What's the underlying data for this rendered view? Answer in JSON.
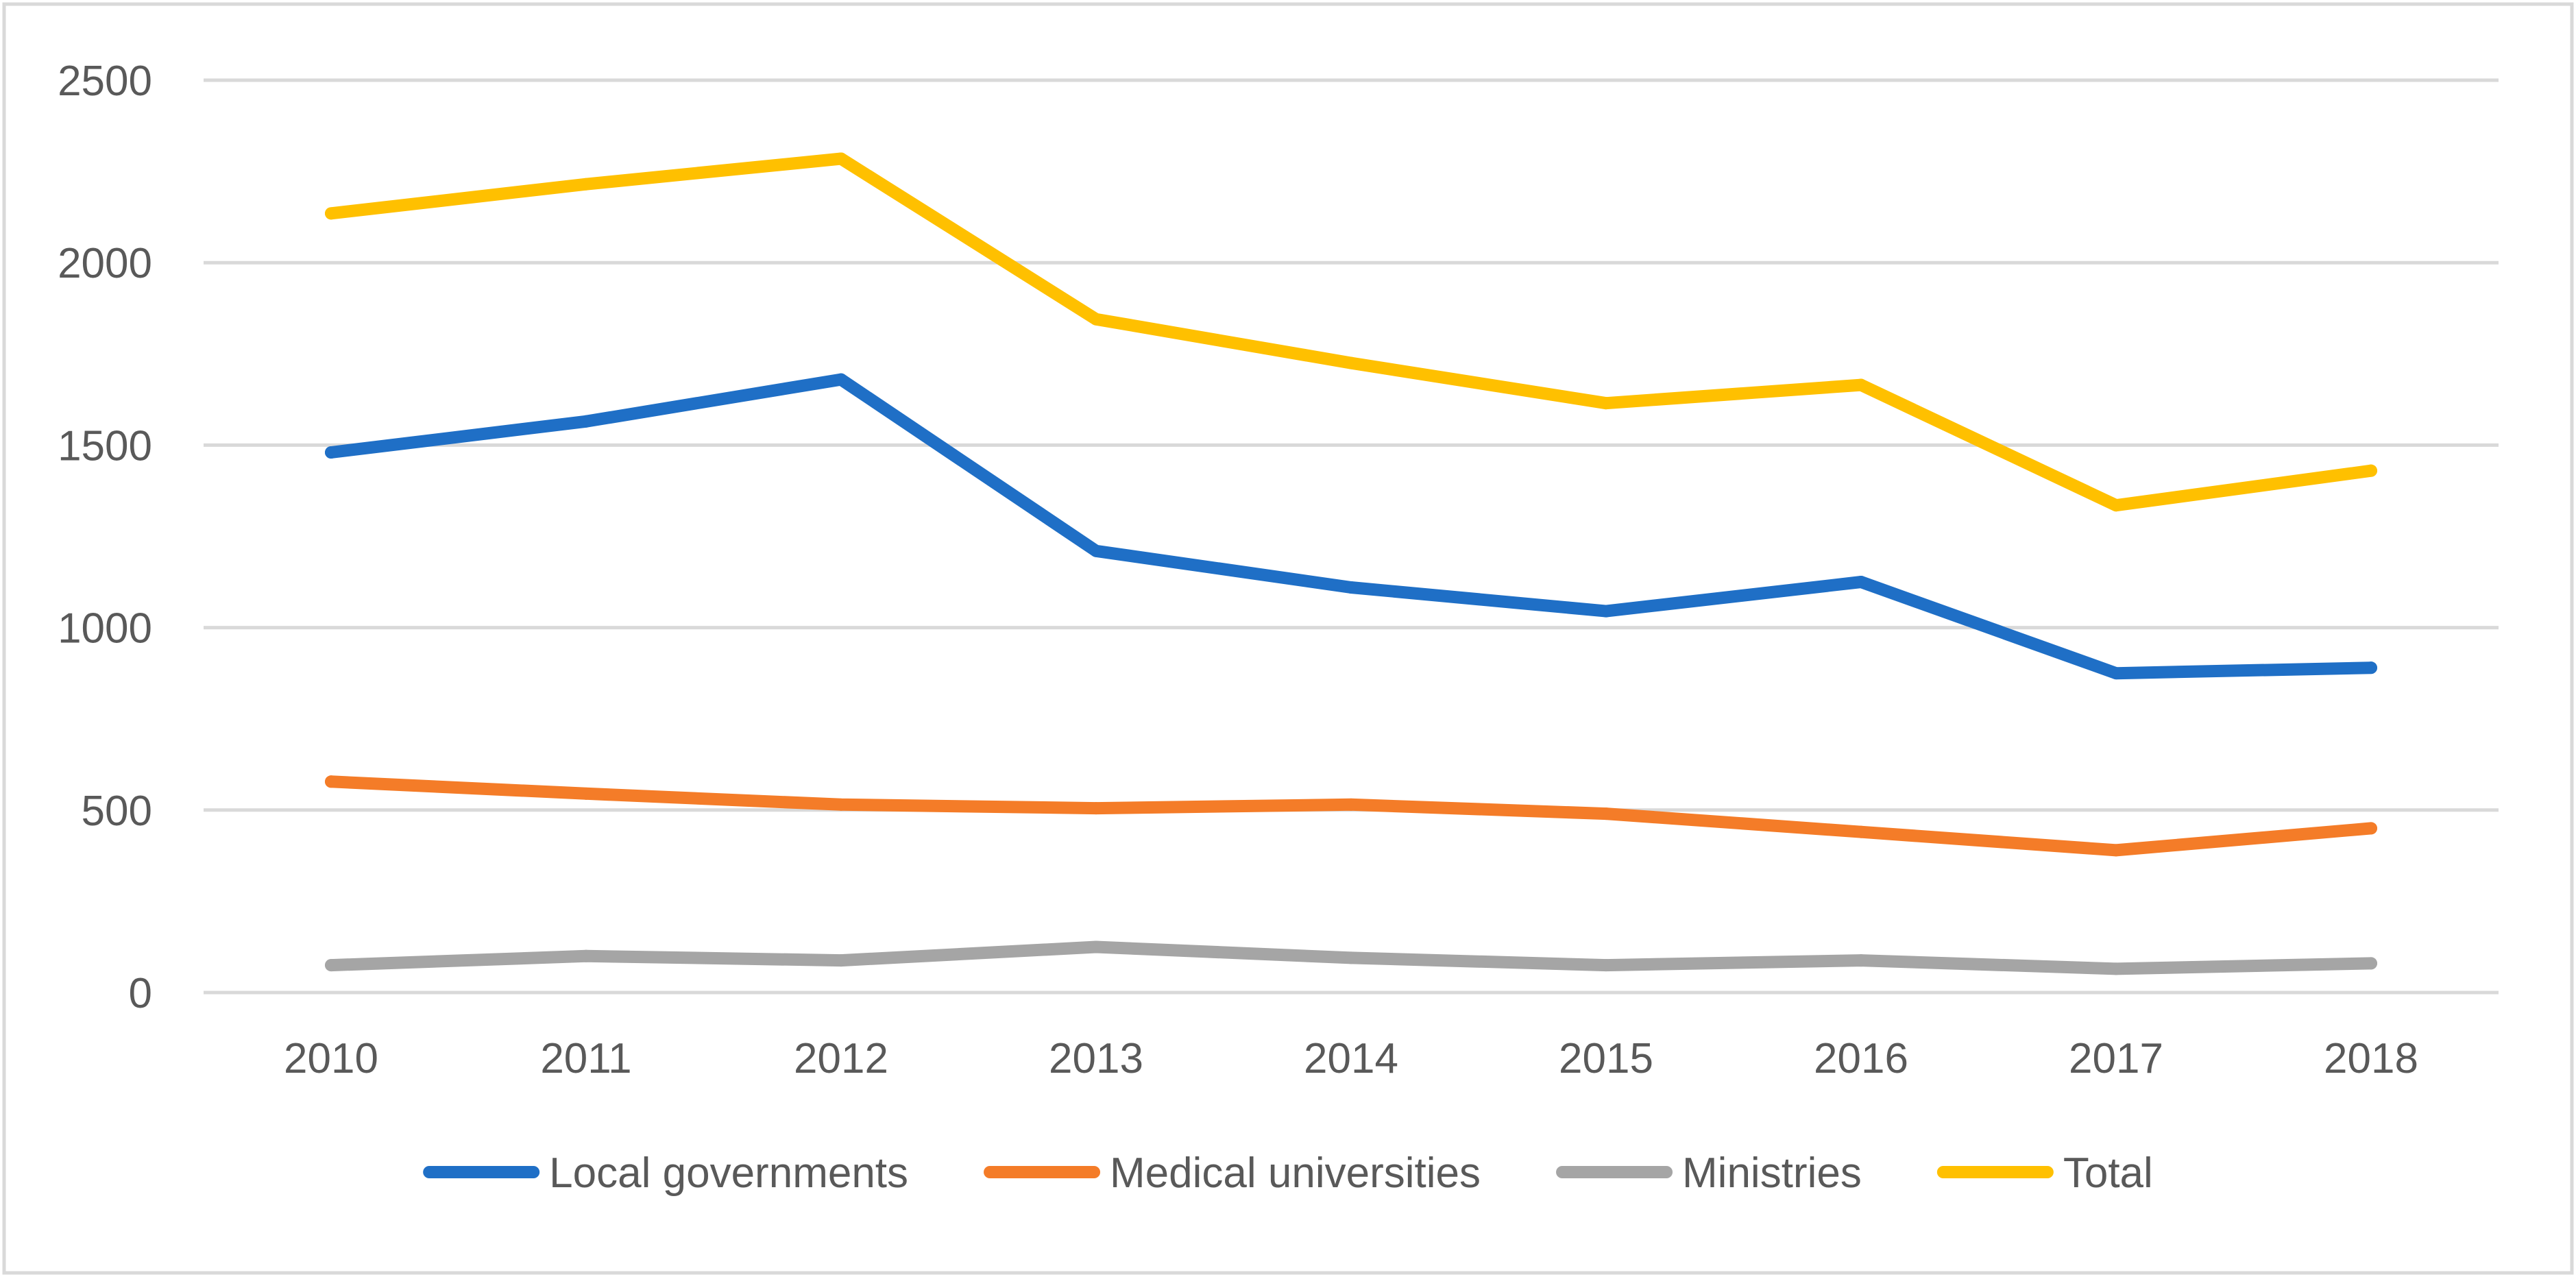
{
  "chart_data": {
    "type": "line",
    "title": "",
    "xlabel": "",
    "ylabel": "",
    "ylim": [
      0,
      2500
    ],
    "yticks": [
      "0",
      "500",
      "1000",
      "1500",
      "2000",
      "2500"
    ],
    "categories": [
      "2010",
      "2011",
      "2012",
      "2013",
      "2014",
      "2015",
      "2016",
      "2017",
      "2018"
    ],
    "grid": true,
    "legend_position": "bottom",
    "series": [
      {
        "name": "Local governments",
        "color": "#1f6fc6",
        "values": [
          1480,
          1565,
          1680,
          1210,
          1110,
          1045,
          1125,
          875,
          890
        ]
      },
      {
        "name": "Medical universities",
        "color": "#f47c28",
        "values": [
          578,
          545,
          515,
          505,
          515,
          490,
          440,
          390,
          450
        ]
      },
      {
        "name": "Ministries",
        "color": "#a5a5a5",
        "values": [
          75,
          100,
          88,
          125,
          95,
          75,
          88,
          65,
          80
        ]
      },
      {
        "name": "Total",
        "color": "#ffc000",
        "values": [
          2135,
          2215,
          2285,
          1845,
          1725,
          1615,
          1665,
          1335,
          1430
        ]
      }
    ]
  }
}
